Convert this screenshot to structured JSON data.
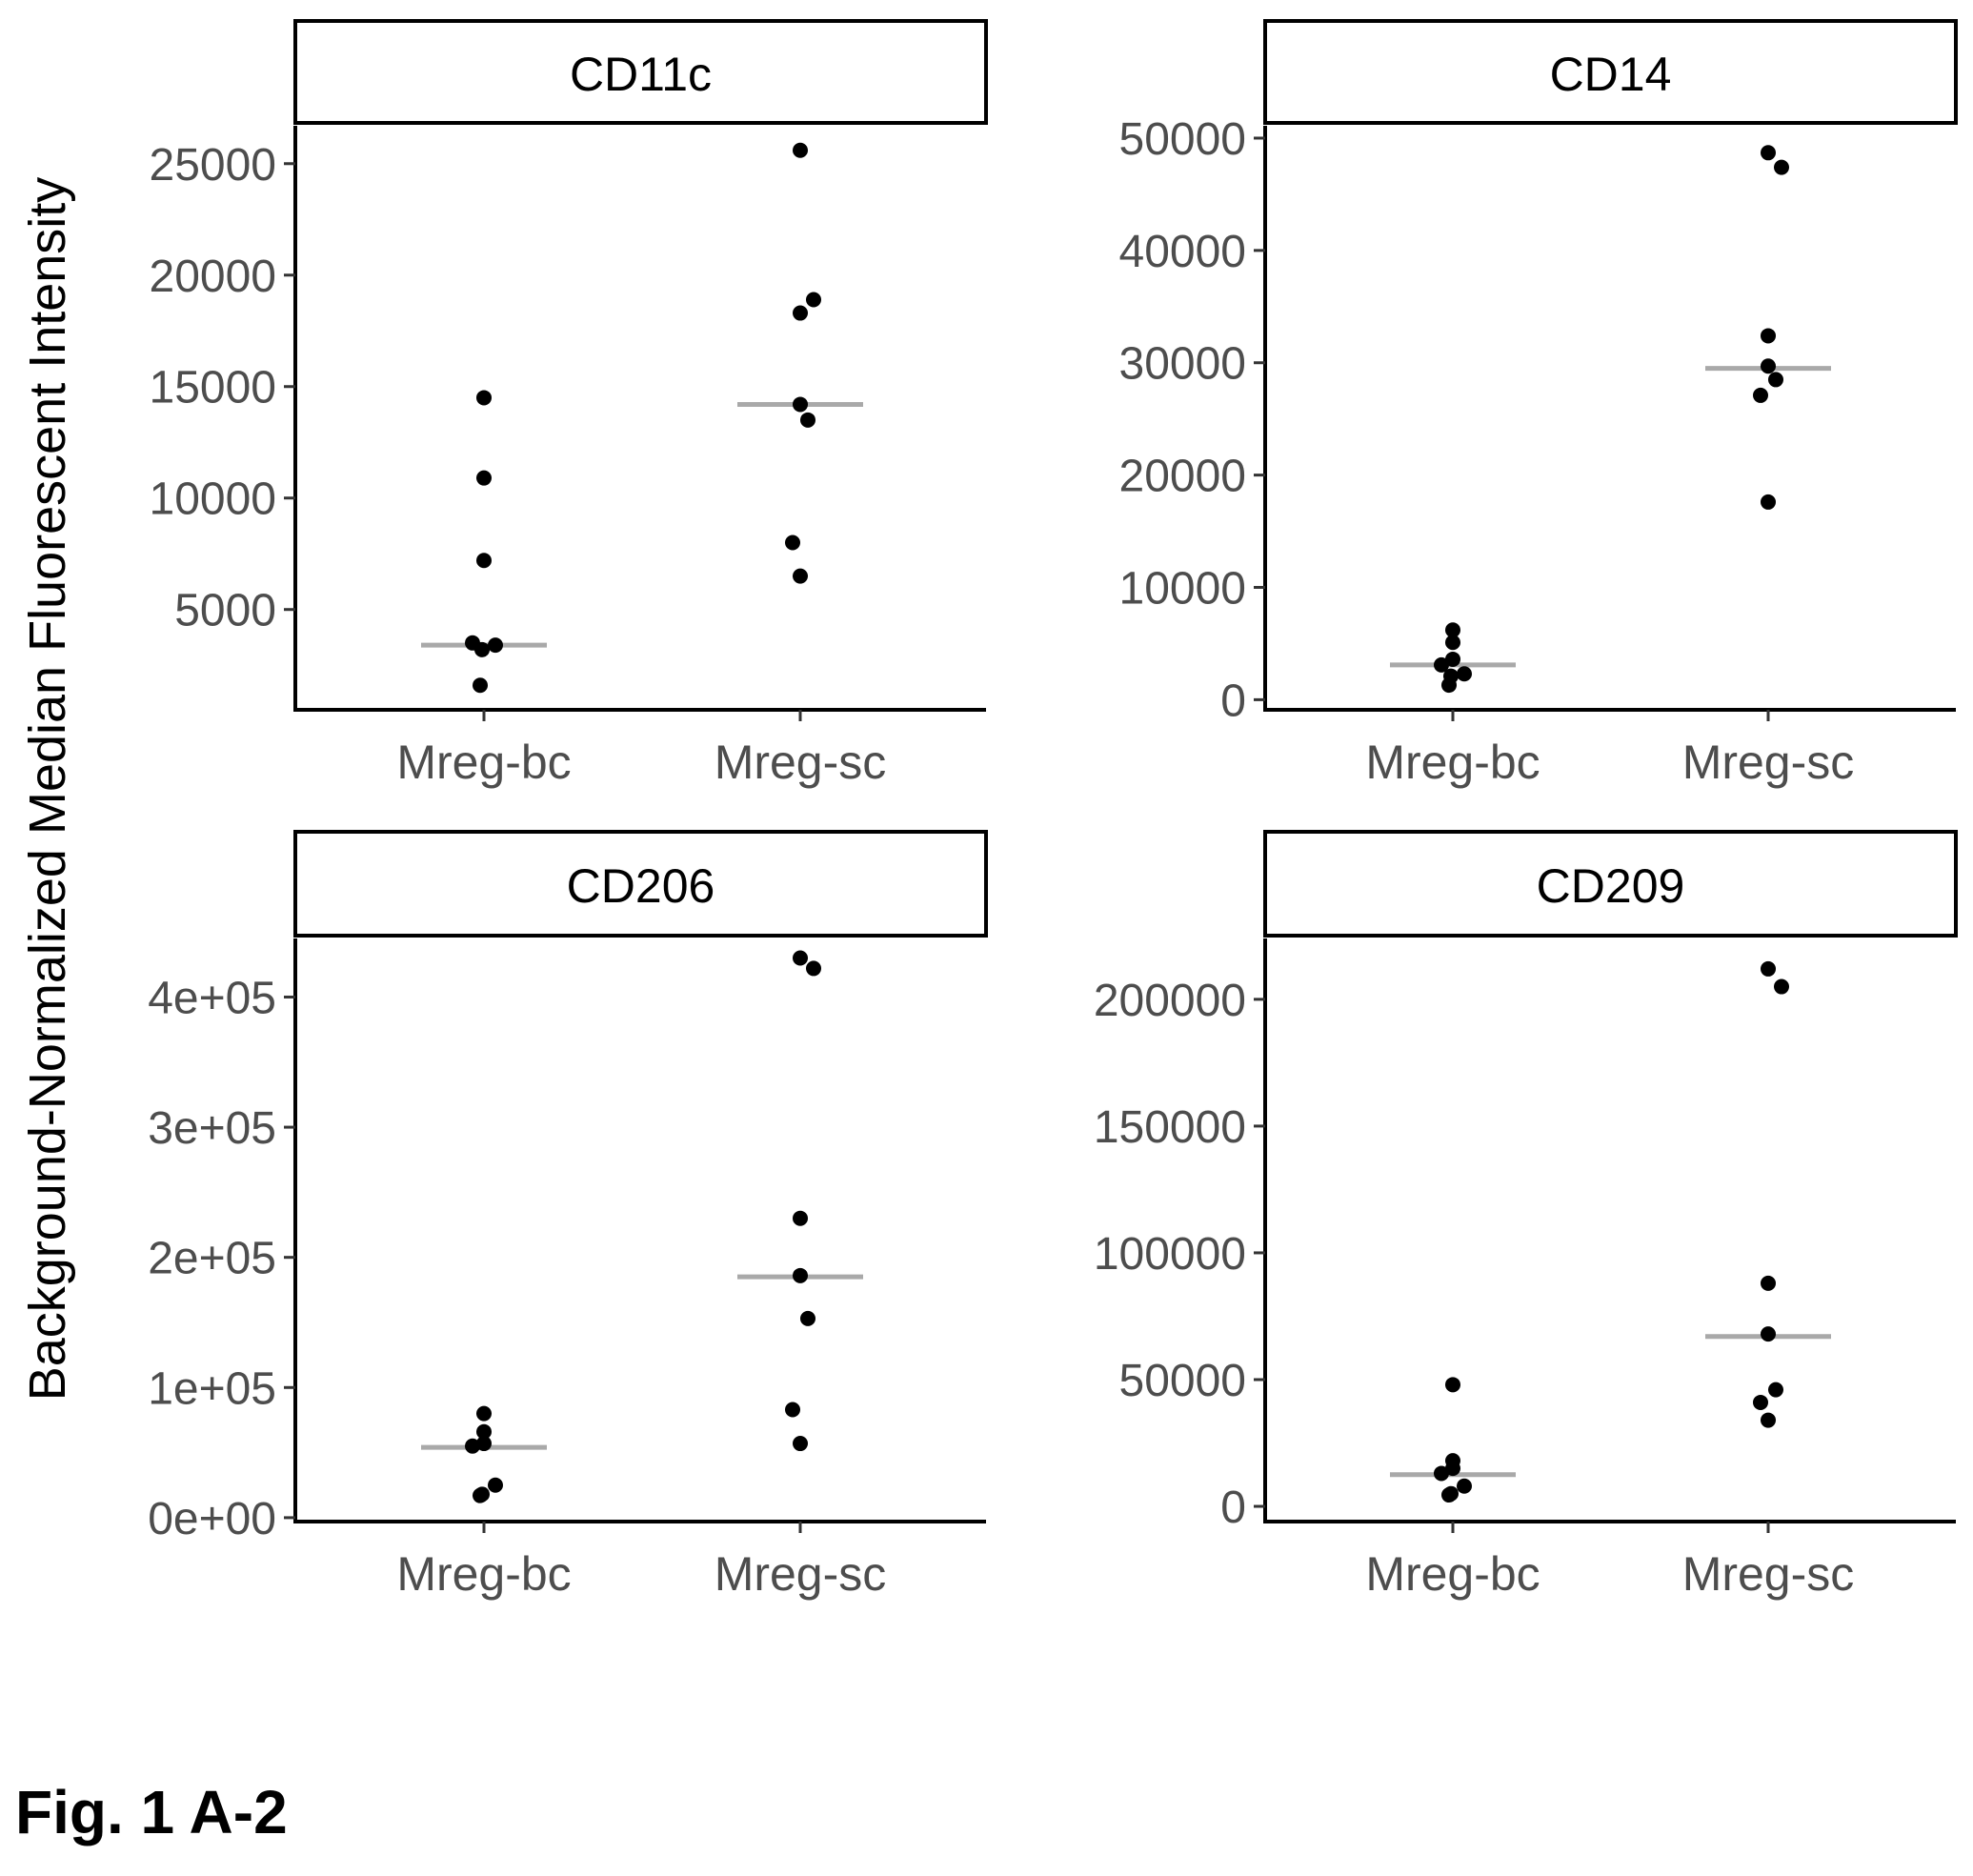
{
  "figure": {
    "caption": "Fig. 1 A-2",
    "ylabel": "Background-Normalized Median Fluorescent Intensity"
  },
  "chart_data": [
    {
      "type": "scatter",
      "title": "CD11c",
      "categories": [
        "Mreg-bc",
        "Mreg-sc"
      ],
      "yticks": [
        5000,
        10000,
        15000,
        20000,
        25000
      ],
      "tick_labels": [
        "5000",
        "10000",
        "15000",
        "20000",
        "25000"
      ],
      "ylim": [
        500,
        26700
      ],
      "points": [
        {
          "category": "Mreg-bc",
          "values": [
            14500,
            10900,
            7200,
            3500,
            3400,
            3200,
            1600
          ]
        },
        {
          "category": "Mreg-sc",
          "values": [
            25600,
            18900,
            18300,
            14200,
            13500,
            8000,
            6500
          ]
        }
      ],
      "medians": [
        3400,
        14200
      ]
    },
    {
      "type": "scatter",
      "title": "CD14",
      "categories": [
        "Mreg-bc",
        "Mreg-sc"
      ],
      "yticks": [
        0,
        10000,
        20000,
        30000,
        40000,
        50000
      ],
      "tick_labels": [
        "0",
        "10000",
        "20000",
        "30000",
        "40000",
        "50000"
      ],
      "ylim": [
        -900,
        51100
      ],
      "points": [
        {
          "category": "Mreg-bc",
          "values": [
            6200,
            5100,
            3600,
            3100,
            2300,
            2100,
            1300
          ]
        },
        {
          "category": "Mreg-sc",
          "values": [
            48700,
            47400,
            32400,
            29700,
            28500,
            27100,
            17600
          ]
        }
      ],
      "medians": [
        3100,
        29500
      ]
    },
    {
      "type": "scatter",
      "title": "CD206",
      "categories": [
        "Mreg-bc",
        "Mreg-sc"
      ],
      "yticks": [
        0,
        100000,
        200000,
        300000,
        400000
      ],
      "tick_labels": [
        "0e+00",
        "1e+05",
        "2e+05",
        "3e+05",
        "4e+05"
      ],
      "ylim": [
        -3000,
        445000
      ],
      "points": [
        {
          "category": "Mreg-bc",
          "values": [
            80000,
            66000,
            57000,
            55000,
            25000,
            18000,
            17000
          ]
        },
        {
          "category": "Mreg-sc",
          "values": [
            430000,
            422000,
            230000,
            186000,
            153000,
            83000,
            57000
          ]
        }
      ],
      "medians": [
        54000,
        185000
      ]
    },
    {
      "type": "scatter",
      "title": "CD209",
      "categories": [
        "Mreg-bc",
        "Mreg-sc"
      ],
      "yticks": [
        0,
        50000,
        100000,
        150000,
        200000
      ],
      "tick_labels": [
        "0",
        "50000",
        "100000",
        "150000",
        "200000"
      ],
      "ylim": [
        -6000,
        224000
      ],
      "points": [
        {
          "category": "Mreg-bc",
          "values": [
            48000,
            18000,
            15000,
            13000,
            8000,
            5000,
            4500
          ]
        },
        {
          "category": "Mreg-sc",
          "values": [
            212000,
            205000,
            88000,
            68000,
            46000,
            41000,
            34000
          ]
        }
      ],
      "medians": [
        12500,
        67000
      ]
    }
  ]
}
